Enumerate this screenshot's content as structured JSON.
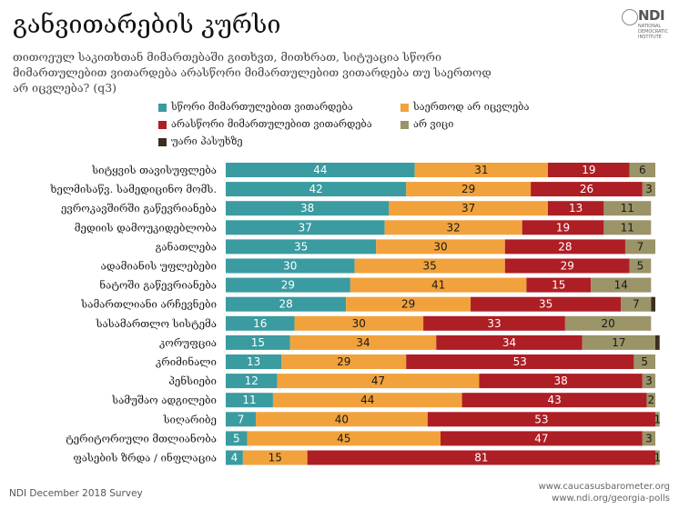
{
  "title": "განვითარების კურსი",
  "subtitle": "თითოეულ საკითხთან მიმართებაში გითხვთ, მითხრათ, სიტუაცია სწორი მიმართულებით ვითარდება არასწორი მიმართულებით ვითარდება თუ საერთოდ არ იცვლება? (q3)",
  "logo": {
    "text": "NDI",
    "line1": "NATIONAL",
    "line2": "DEMOCRATIC",
    "line3": "INSTITUTE"
  },
  "footer": {
    "survey": "NDI December 2018 Survey",
    "url1": "www.caucasusbarometer.org",
    "url2": "www.ndi.org/georgia-polls"
  },
  "chart_data": {
    "type": "bar",
    "orientation": "horizontal",
    "stacked": true,
    "percent_scale": [
      0,
      100
    ],
    "grid": false,
    "legend_position": "top",
    "categories": [
      "სიტყვის თავისუფლება",
      "ხელმისაწვ. სამედიცინო მომს.",
      "ევროკავშირში გაწევრიანება",
      "მედიის დამოუკიდებლობა",
      "განათლება",
      "ადამიანის უფლებები",
      "ნატოში გაწევრიანება",
      "სამართლიანი არჩევნები",
      "სასამართლო სისტემა",
      "კორუფცია",
      "კრიმინალი",
      "პენსიები",
      "სამუშაო ადგილები",
      "სიღარიბე",
      "ტერიტორიული მთლიანობა",
      "ფასების ზრდა / ინფლაცია"
    ],
    "series": [
      {
        "name": "სწორი მიმართულებით ვითარდება",
        "color": "#3a9ba0",
        "values": [
          44,
          42,
          38,
          37,
          35,
          30,
          29,
          28,
          16,
          15,
          13,
          12,
          11,
          7,
          5,
          4
        ]
      },
      {
        "name": "საერთოდ არ იცვლება",
        "color": "#f2a23c",
        "values": [
          31,
          29,
          37,
          32,
          30,
          35,
          41,
          29,
          30,
          34,
          29,
          47,
          44,
          40,
          45,
          15
        ]
      },
      {
        "name": "არასწორი მიმართულებით ვითარდება",
        "color": "#ae1e25",
        "values": [
          19,
          26,
          13,
          19,
          28,
          29,
          15,
          35,
          33,
          34,
          53,
          38,
          43,
          53,
          47,
          81
        ]
      },
      {
        "name": "არ ვიცი",
        "color": "#9a9468",
        "values": [
          6,
          3,
          11,
          11,
          7,
          5,
          14,
          7,
          20,
          17,
          5,
          3,
          2,
          1,
          3,
          1
        ]
      },
      {
        "name": "უარი პასუხზე",
        "color": "#3b2e1e",
        "values": [
          0,
          0,
          0,
          0,
          0,
          0,
          0,
          1,
          0,
          1,
          0,
          0,
          0,
          0,
          0,
          0
        ]
      }
    ]
  }
}
